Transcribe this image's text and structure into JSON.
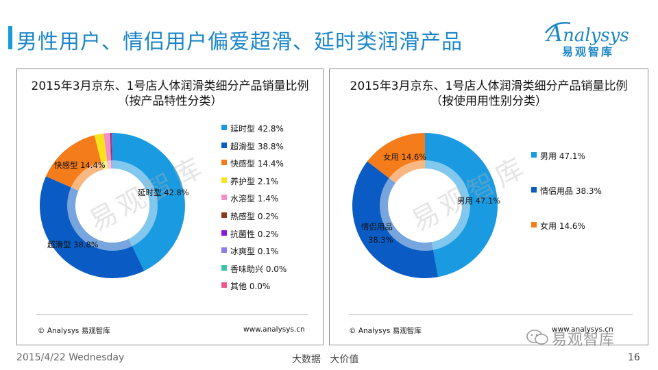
{
  "page": {
    "title": "男性用户、情侣用户偏爱超滑、延时类润滑产品",
    "date": "2015/4/22 Wednesday",
    "slogan": "大数据   大价值",
    "page_number": "16",
    "accent": "#1a86c8"
  },
  "logo": {
    "word_lead": "A",
    "word_rest": "nalysys",
    "sub": "易观智库"
  },
  "watermark": {
    "text": "易观智库"
  },
  "wechat_mark": {
    "text": "易观智库"
  },
  "chart_data": [
    {
      "type": "pie",
      "donut": true,
      "title": "2015年3月京东、1号店人体润滑类细分产品销量比例",
      "subtitle": "（按产品特性分类）",
      "legend_position": "right",
      "categories": [
        "延时型",
        "超滑型",
        "快感型",
        "养护型",
        "水溶型",
        "热感型",
        "抗菌性",
        "冰爽型",
        "香味助兴",
        "其他"
      ],
      "values": [
        42.8,
        38.8,
        14.4,
        2.1,
        1.4,
        0.2,
        0.2,
        0.1,
        0.0,
        0.0
      ],
      "value_labels": [
        "42.8%",
        "38.8%",
        "14.4%",
        "2.1%",
        "1.4%",
        "0.2%",
        "0.2%",
        "0.1%",
        "0.0%",
        "0.0%"
      ],
      "colors": [
        "#1a9ae0",
        "#0a5cc4",
        "#f57c1a",
        "#f7e21c",
        "#f28ec8",
        "#8b3a1a",
        "#8a1ad6",
        "#8f7af0",
        "#3cc4a8",
        "#f05a8a"
      ],
      "slice_labels": [
        {
          "text": "延时型 42.8%"
        },
        {
          "text": "超滑型 38.8%"
        },
        {
          "text": "快感型 14.4%"
        }
      ],
      "source_left": "© Analysys 易观智库",
      "source_right": "www.analysys.cn"
    },
    {
      "type": "pie",
      "donut": true,
      "title": "2015年3月京东、1号店人体润滑类细分产品销量比例",
      "subtitle": "（按使用用性别分类）",
      "legend_position": "right",
      "categories": [
        "男用",
        "情侣用品",
        "女用"
      ],
      "values": [
        47.1,
        38.3,
        14.6
      ],
      "value_labels": [
        "47.1%",
        "38.3%",
        "14.6%"
      ],
      "colors": [
        "#1a9ae0",
        "#0a5cc4",
        "#f57c1a"
      ],
      "slice_labels": [
        {
          "text": "男用 47.1%"
        },
        {
          "text": "情侣用品"
        },
        {
          "text": "38.3%"
        },
        {
          "text": "女用 14.6%"
        }
      ],
      "source_left": "© Analysys 易观智库",
      "source_right": "www.analysys.cn"
    }
  ]
}
